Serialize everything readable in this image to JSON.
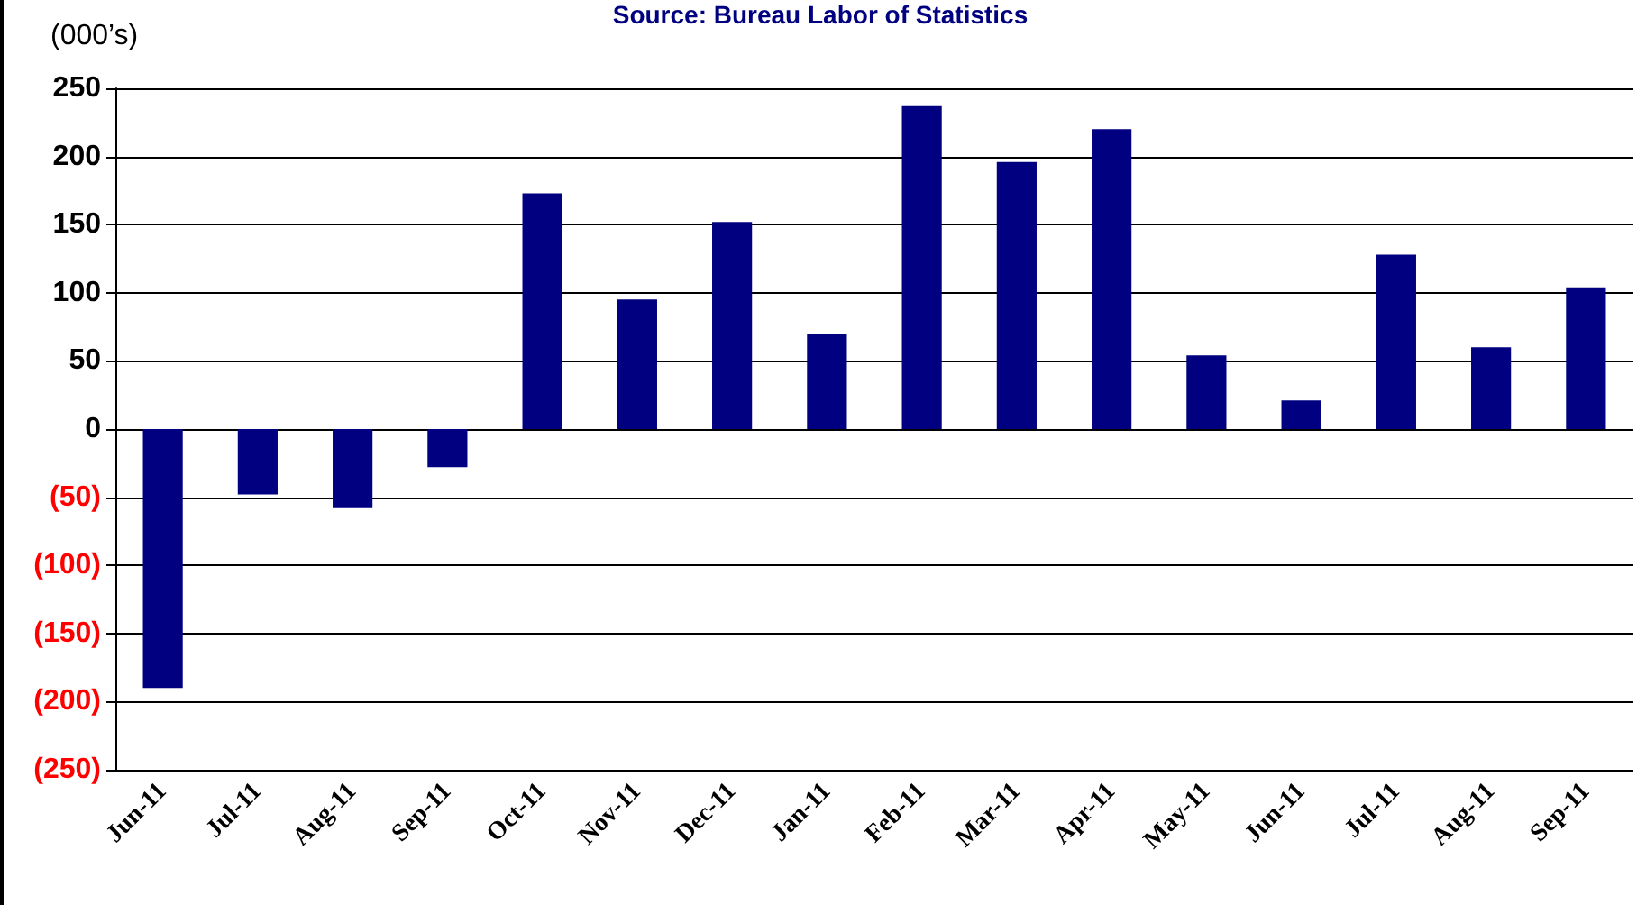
{
  "chart_data": {
    "type": "bar",
    "ylabel": "(000’s)",
    "annotations": [
      "Source: Bureau Labor of Statistics"
    ],
    "categories": [
      "Jun-11",
      "Jul-11",
      "Aug-11",
      "Sep-11",
      "Oct-11",
      "Nov-11",
      "Dec-11",
      "Jan-11",
      "Feb-11",
      "Mar-11",
      "Apr-11",
      "May-11",
      "Jun-11",
      "Jul-11",
      "Aug-11",
      "Sep-11"
    ],
    "values": [
      -190,
      -48,
      -58,
      -28,
      173,
      95,
      152,
      70,
      237,
      196,
      220,
      54,
      21,
      128,
      60,
      104
    ],
    "color": "#000080",
    "ylim": [
      -250,
      250
    ],
    "yticks": [
      {
        "value": -250,
        "label": "(250)"
      },
      {
        "value": -200,
        "label": "(200)"
      },
      {
        "value": -150,
        "label": "(150)"
      },
      {
        "value": -100,
        "label": "(100)"
      },
      {
        "value": -50,
        "label": "(50)"
      },
      0,
      50,
      100,
      150,
      200,
      250
    ],
    "grid": "y"
  }
}
